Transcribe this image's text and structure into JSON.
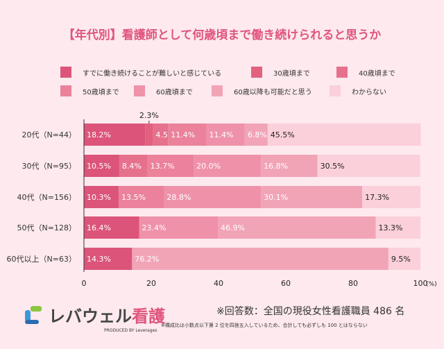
{
  "chart_data": {
    "type": "bar",
    "orientation": "horizontal",
    "stacked": true,
    "title": "【年代別】看護師として何歳頃まで働き続けられると思うか",
    "categories": [
      "20代（N=44）",
      "30代（N=95）",
      "40代（N=156）",
      "50代（N=128）",
      "60代以上（N=63）"
    ],
    "series": [
      {
        "name": "すでに働き続けることが難しいと感じている",
        "color": "#dc5479",
        "values": [
          18.2,
          10.5,
          10.3,
          16.4,
          14.3
        ]
      },
      {
        "name": "30歳頃まで",
        "color": "#e2617f",
        "values": [
          2.3,
          0,
          0,
          0,
          0
        ]
      },
      {
        "name": "40歳頃まで",
        "color": "#e6718d",
        "values": [
          4.5,
          8.4,
          0,
          0,
          0
        ]
      },
      {
        "name": "50歳頃まで",
        "color": "#eb819b",
        "values": [
          11.4,
          13.7,
          13.5,
          0,
          0
        ]
      },
      {
        "name": "60歳頃まで",
        "color": "#ef92a9",
        "values": [
          11.4,
          20.0,
          28.8,
          23.4,
          0
        ]
      },
      {
        "name": "60歳以降も可能だと思う",
        "color": "#f2a4b7",
        "values": [
          6.8,
          16.8,
          30.1,
          46.9,
          76.2
        ]
      },
      {
        "name": "わからない",
        "color": "#fbd0da",
        "values": [
          45.5,
          30.5,
          17.3,
          13.3,
          9.5
        ]
      }
    ],
    "xlim": [
      0,
      100
    ],
    "xticks": [
      "0",
      "20",
      "40",
      "60",
      "80",
      "100"
    ],
    "xunit": "(%)",
    "grid": false,
    "legend": "top"
  },
  "footer": {
    "logo_main": "レバウェル",
    "logo_accent": "看護",
    "logo_sub": "PRODUCED BY Leverages",
    "respondents": "※回答数：全国の現役女性看護職員 486 名",
    "rounding_note": "※構成比は小数点以下第 2 位を四捨五入しているため、合計しても必ずしも 100 とはならない"
  }
}
